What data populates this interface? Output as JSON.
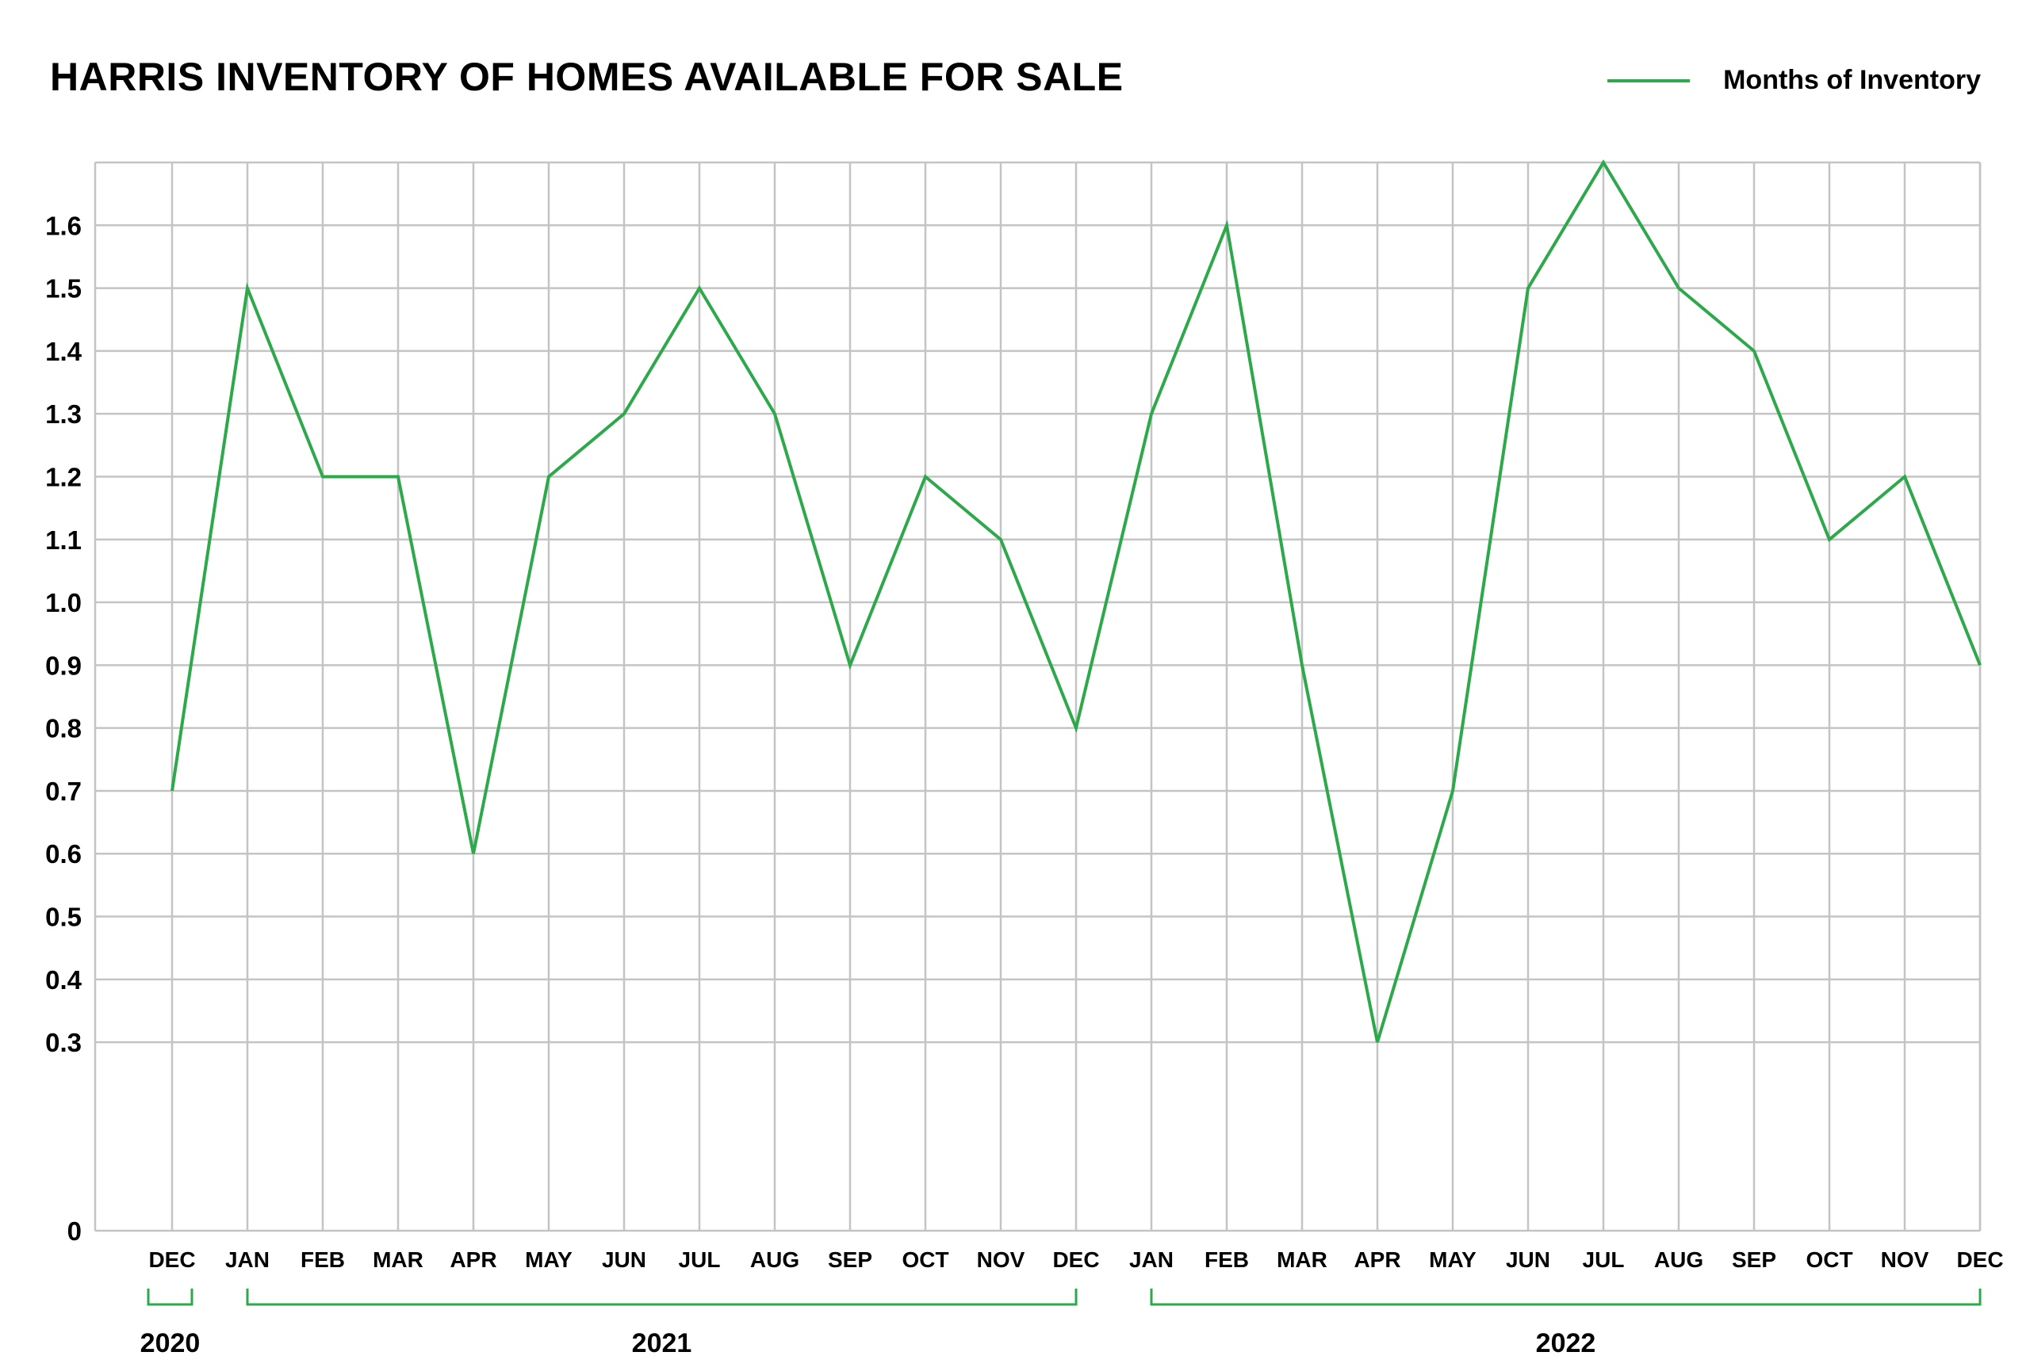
{
  "chart_data": {
    "type": "line",
    "title": "HARRIS INVENTORY OF HOMES AVAILABLE FOR SALE",
    "xlabel": "",
    "ylabel": "",
    "categories": [
      "DEC",
      "JAN",
      "FEB",
      "MAR",
      "APR",
      "MAY",
      "JUN",
      "JUL",
      "AUG",
      "SEP",
      "OCT",
      "NOV",
      "DEC",
      "JAN",
      "FEB",
      "MAR",
      "APR",
      "MAY",
      "JUN",
      "JUL",
      "AUG",
      "SEP",
      "OCT",
      "NOV",
      "DEC"
    ],
    "year_groups": [
      {
        "label": "2020",
        "start": 0,
        "end": 0
      },
      {
        "label": "2021",
        "start": 1,
        "end": 12
      },
      {
        "label": "2022",
        "start": 13,
        "end": 24
      }
    ],
    "series": [
      {
        "name": "Months of Inventory",
        "color": "#2da84a",
        "values": [
          0.7,
          1.5,
          1.2,
          1.2,
          0.6,
          1.2,
          1.3,
          1.5,
          1.3,
          0.9,
          1.2,
          1.1,
          0.8,
          1.3,
          1.6,
          0.9,
          0.3,
          0.7,
          1.5,
          1.7,
          1.5,
          1.4,
          1.1,
          1.2,
          0.9
        ]
      }
    ],
    "y_ticks": [
      "0",
      "0.3",
      "0.4",
      "0.5",
      "0.6",
      "0.7",
      "0.8",
      "0.9",
      "1.0",
      "1.1",
      "1.2",
      "1.3",
      "1.4",
      "1.5",
      "1.6"
    ],
    "y_tick_values": [
      0,
      0.3,
      0.4,
      0.5,
      0.6,
      0.7,
      0.8,
      0.9,
      1.0,
      1.1,
      1.2,
      1.3,
      1.4,
      1.5,
      1.6
    ],
    "ylim": [
      0,
      1.7
    ],
    "grid": true,
    "legend_position": "top-right",
    "colors": {
      "line": "#2da84a",
      "grid": "#c4c4c4",
      "bracket": "#2da84a"
    }
  }
}
